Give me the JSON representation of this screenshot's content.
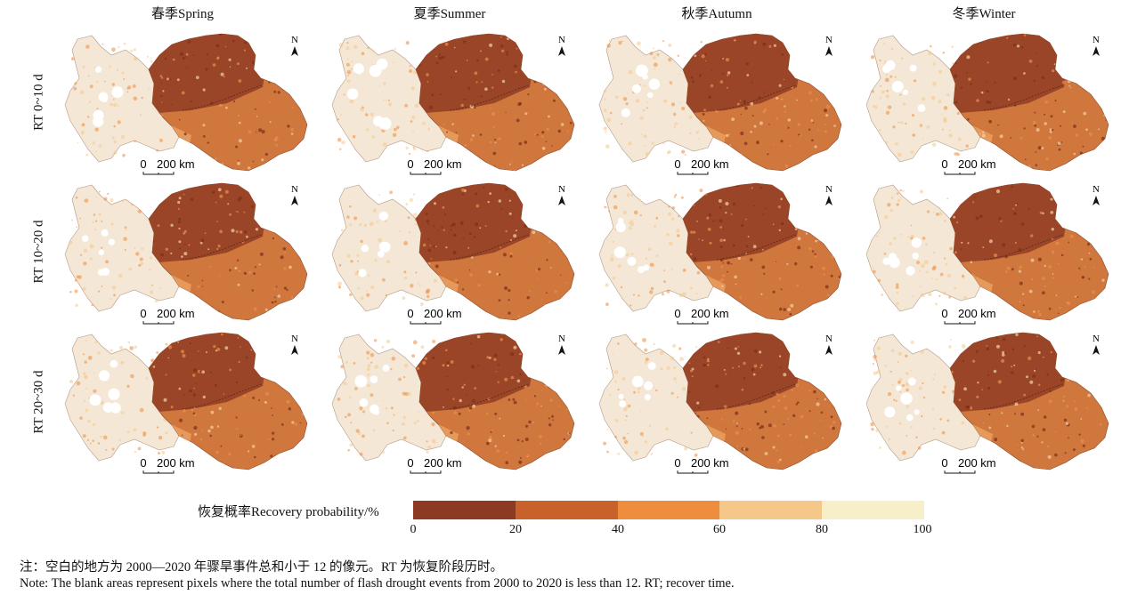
{
  "columns": [
    "春季Spring",
    "夏季Summer",
    "秋季Autumn",
    "冬季Winter"
  ],
  "rows": [
    "RT 0~10 d",
    "RT 10~20 d",
    "RT 20~30 d"
  ],
  "map": {
    "north_label": "N",
    "scale_zero": "0",
    "scale_label": "200 km"
  },
  "legend": {
    "title": "恢复概率Recovery probability/%",
    "colors": [
      "#8c3a22",
      "#c8612a",
      "#ee8d3e",
      "#f5c88a",
      "#f7efc8"
    ],
    "ticks": [
      "0",
      "20",
      "40",
      "60",
      "80",
      "100"
    ]
  },
  "notes": {
    "cn": "注：空白的地方为 2000—2020 年骤旱事件总和小于 12 的像元。RT 为恢复阶段历时。",
    "en": "Note: The blank areas represent pixels where the total number of flash drought events from 2000 to 2020 is less than 12. RT; recover time."
  }
}
